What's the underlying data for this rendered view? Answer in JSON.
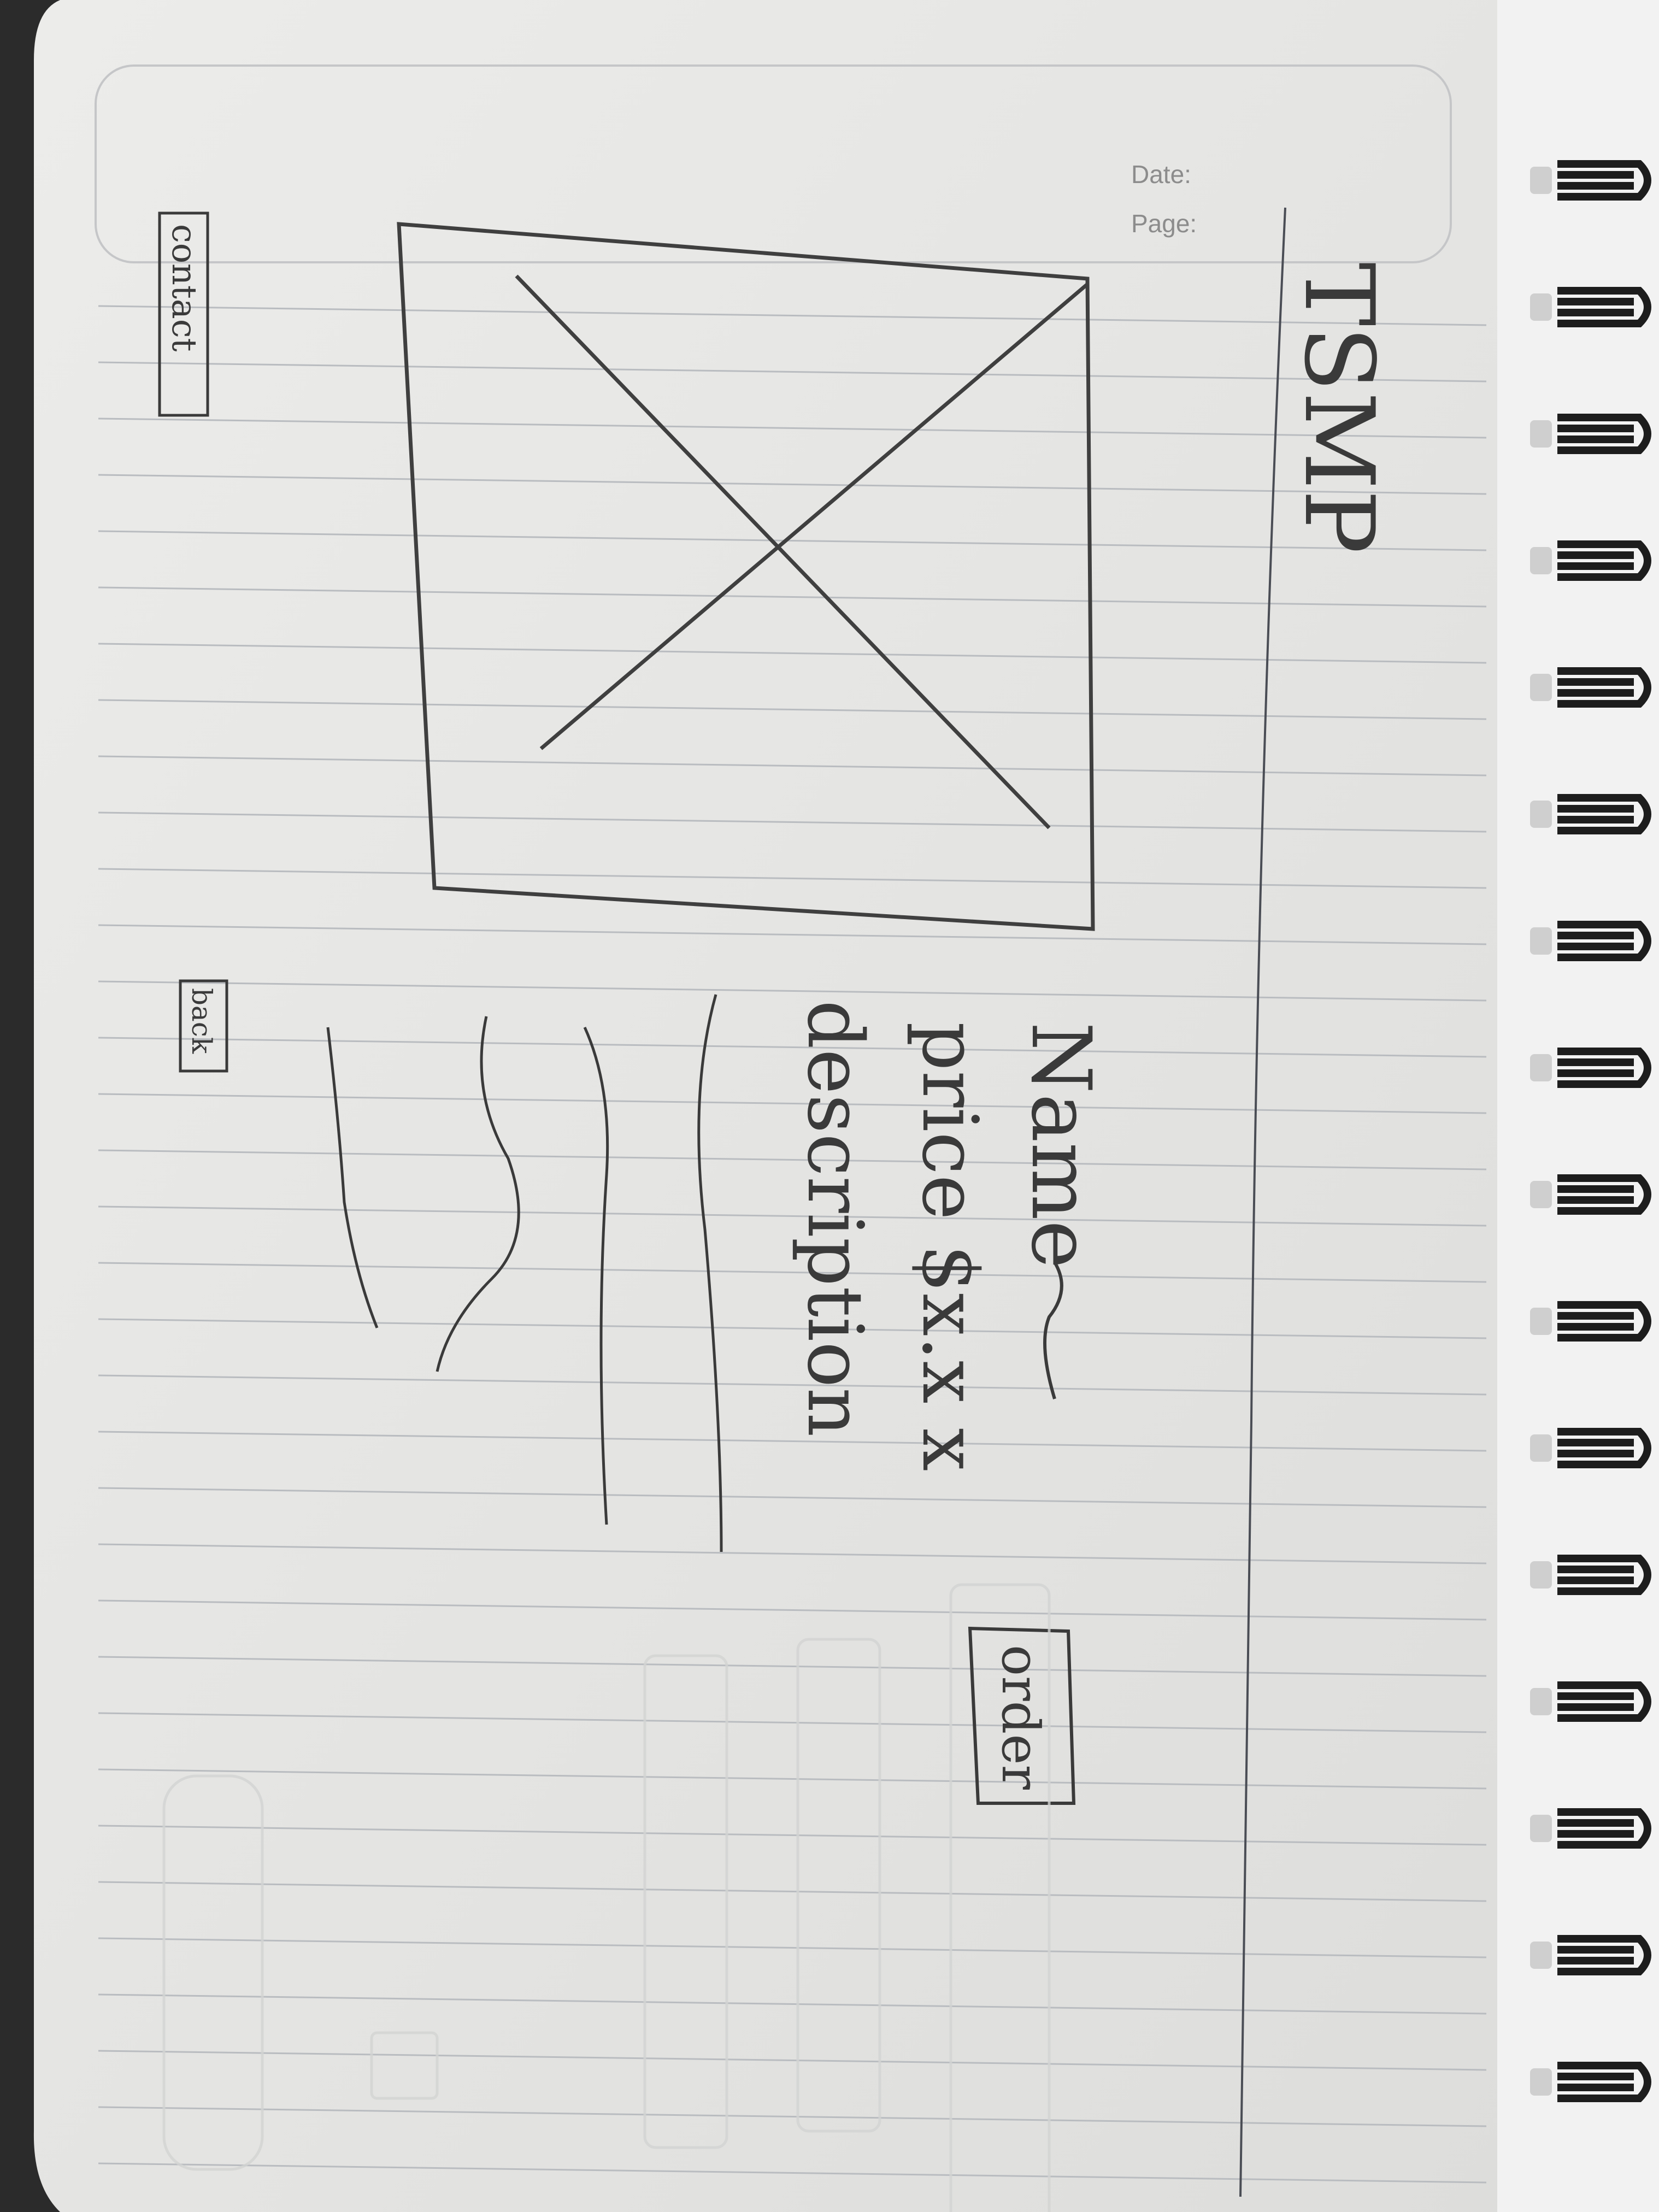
{
  "header": {
    "date_label": "Date:",
    "page_label": "Page:"
  },
  "sketch": {
    "title": "TSMP",
    "product": {
      "name": "Name",
      "price": "price $x.x x",
      "description": "description"
    },
    "buttons": {
      "order": "order",
      "back": "back",
      "contact": "contact"
    }
  },
  "colors": {
    "paper": "#e7e7e5",
    "ink": "#3a3a3a",
    "ruled_line": "#b9bcc0",
    "printed_text": "#8c8c8c",
    "spiral": "#1d1d1d",
    "background": "#2b2b2b"
  }
}
